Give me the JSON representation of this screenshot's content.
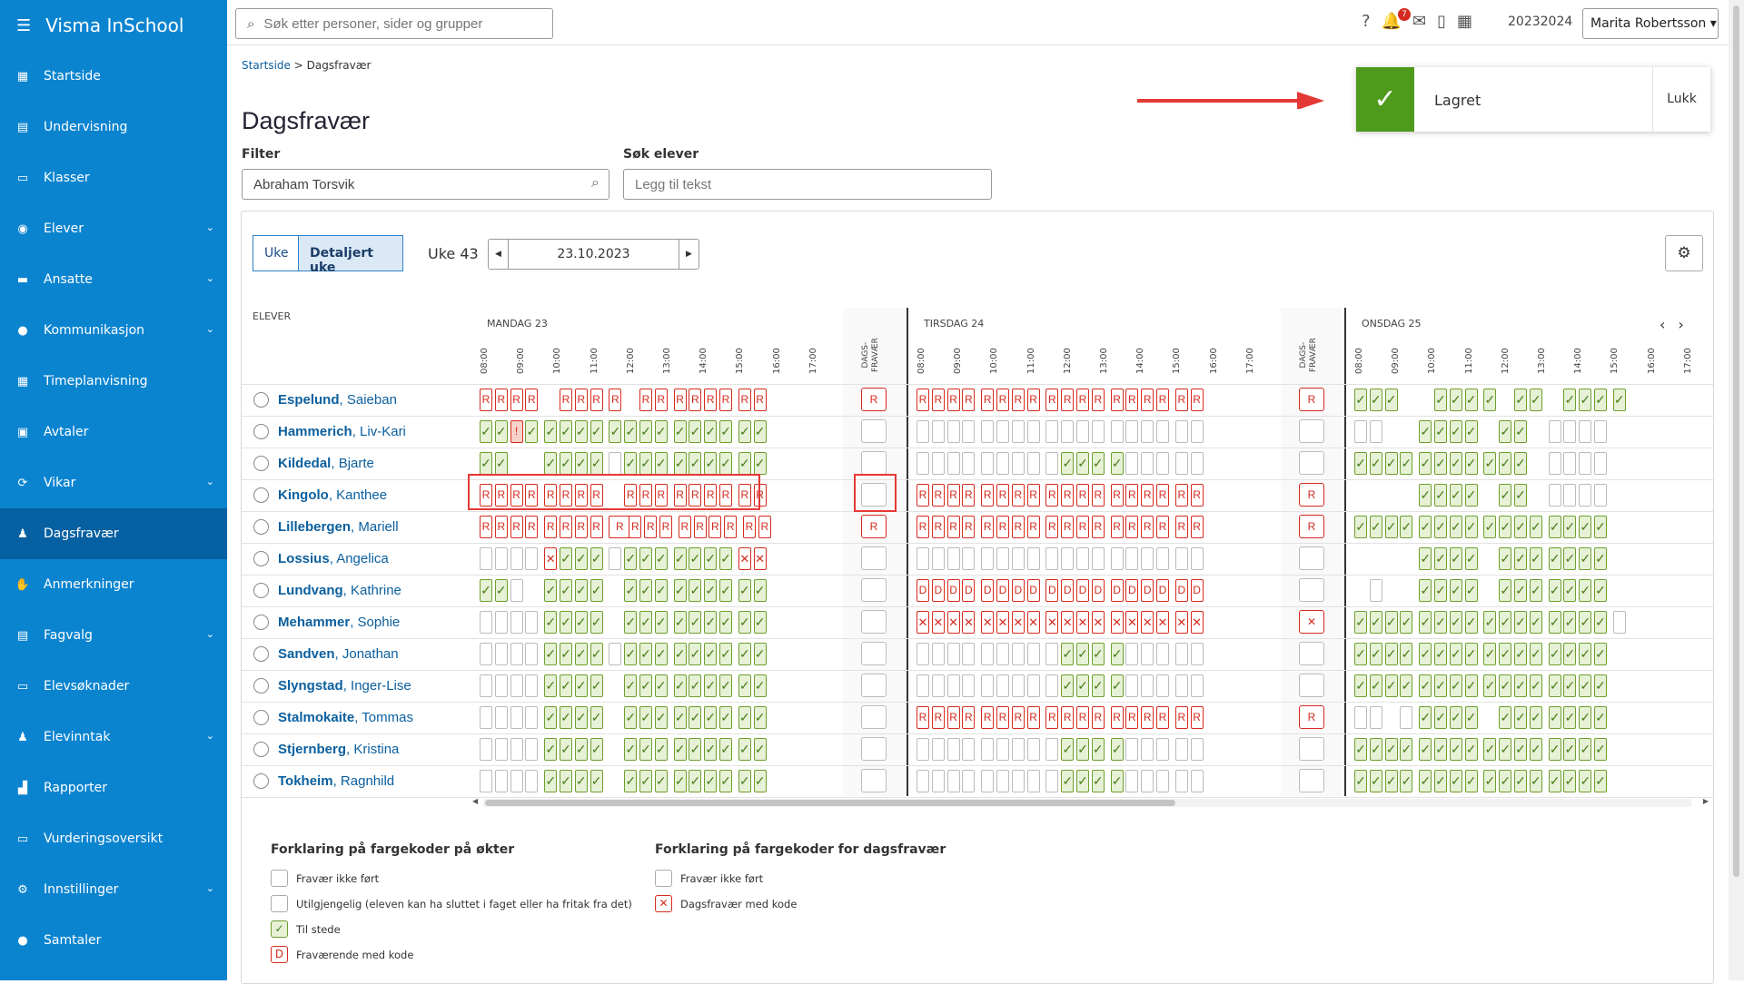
{
  "app": {
    "name": "Visma InSchool"
  },
  "sidebar": {
    "items": [
      {
        "label": "Startside",
        "icon": "grid-icon",
        "chev": false
      },
      {
        "label": "Undervisning",
        "icon": "book-icon",
        "chev": false
      },
      {
        "label": "Klasser",
        "icon": "classroom-icon",
        "chev": false
      },
      {
        "label": "Elever",
        "icon": "student-icon",
        "chev": true
      },
      {
        "label": "Ansatte",
        "icon": "briefcase-icon",
        "chev": true
      },
      {
        "label": "Kommunikasjon",
        "icon": "chat-icon",
        "chev": true
      },
      {
        "label": "Timeplanvisning",
        "icon": "calendar-icon",
        "chev": false
      },
      {
        "label": "Avtaler",
        "icon": "calendar-check-icon",
        "chev": false
      },
      {
        "label": "Vikar",
        "icon": "swap-icon",
        "chev": true
      },
      {
        "label": "Dagsfravær",
        "icon": "user-absence-icon",
        "chev": false,
        "active": true
      },
      {
        "label": "Anmerkninger",
        "icon": "hand-icon",
        "chev": false
      },
      {
        "label": "Fagvalg",
        "icon": "list-icon",
        "chev": true
      },
      {
        "label": "Elevsøknader",
        "icon": "inbox-icon",
        "chev": false
      },
      {
        "label": "Elevinntak",
        "icon": "user-add-icon",
        "chev": true
      },
      {
        "label": "Rapporter",
        "icon": "chart-icon",
        "chev": false
      },
      {
        "label": "Vurderingsoversikt",
        "icon": "board-icon",
        "chev": false
      },
      {
        "label": "Innstillinger",
        "icon": "gear-icon",
        "chev": true
      },
      {
        "label": "Samtaler",
        "icon": "chat-bubbles-icon",
        "chev": false
      }
    ]
  },
  "topbar": {
    "search_placeholder": "Søk etter personer, sider og grupper",
    "notifications_count": "7",
    "year": "20232024",
    "user": "Marita Robertsson"
  },
  "breadcrumb": {
    "home": "Startside",
    "sep": ">",
    "current": "Dagsfravær"
  },
  "page_title": "Dagsfravær",
  "filter": {
    "label": "Filter",
    "value": "Abraham Torsvik"
  },
  "search_students": {
    "label": "Søk elever",
    "placeholder": "Legg til tekst"
  },
  "toast": {
    "text": "Lagret",
    "close": "Lukk"
  },
  "view": {
    "week_label": "Uke",
    "detailed_label": "Detaljert uke",
    "week_no": "Uke 43",
    "date": "23.10.2023"
  },
  "grid": {
    "students_header": "ELEVER",
    "dags_header_line1": "DAGS-",
    "dags_header_line2": "FRAVÆR",
    "days": [
      "MANDAG 23",
      "TIRSDAG 24",
      "ONSDAG 25"
    ],
    "hours": [
      "08:00",
      "09:00",
      "10:00",
      "11:00",
      "12:00",
      "13:00",
      "14:00",
      "15:00",
      "16:00",
      "17:00"
    ],
    "students": [
      {
        "last": "Espelund",
        "first": "Saieban",
        "mon": "RRRR.RRRR.RRRRRRRR",
        "mon_d": "R",
        "tue": "RRRRRRRRRRRRRRRRRR",
        "tue_d": "R",
        "wed": "VVV..VVVV.VV.VVVV."
      },
      {
        "last": "Hammerich",
        "first": "Liv-Kari",
        "mon": "VVEVVVVVBVVVVVVVVV",
        "mon_d": "",
        "tue": "NNNNNNNNNNNNNNNNNN",
        "tue_d": "",
        "wed": "NN..VVVV.VV.NNNN."
      },
      {
        "last": "Kildedal",
        "first": "Bjarte",
        "mon": "VV..VVVVNVVVVVVVVV",
        "mon_d": "",
        "tue": "NNNNNNNNNVVVVNNNNN",
        "tue_d": "",
        "wed": "VVVVVVVVVVV.NNNN."
      },
      {
        "last": "Kingolo",
        "first": "Kanthee",
        "mon": "RRRRRRRR.RRRRRRRRR",
        "mon_d": "",
        "tue": "RRRRRRRRRRRRRRRRRR",
        "tue_d": "R",
        "wed": "....VVVV.VV.NNNN."
      },
      {
        "last": "Lillebergen",
        "first": "Mariell",
        "mon": "RRRRRRRRKRRRRRRRRR",
        "mon_d": "R",
        "tue": "RRRRRRRRRRRRRRRRRR",
        "tue_d": "R",
        "wed": "VVVVVVVVVVVVVVVV."
      },
      {
        "last": "Lossius",
        "first": "Angelica",
        "mon": "NNNNXVVVNVVVVVVVXX",
        "mon_d": "",
        "tue": "NNNNNNNNNNNNNNNNNN",
        "tue_d": "",
        "wed": "....VVVV.VVVVVVV."
      },
      {
        "last": "Lundvang",
        "first": "Kathrine",
        "mon": "VVN.VVVV.VVVVVVVVV",
        "mon_d": "",
        "tue": "DDDDDDDDDDDDDDDDDD",
        "tue_d": "",
        "wed": ".N..VVVV.VVVVVVV."
      },
      {
        "last": "Mehammer",
        "first": "Sophie",
        "mon": "NNNNVVVV.VVVVVVVVV",
        "mon_d": "",
        "tue": "XXXXXXXXXXXXXXXXXX",
        "tue_d": "X",
        "wed": "VVVVVVVVVVVVVVVVN"
      },
      {
        "last": "Sandven",
        "first": "Jonathan",
        "mon": "NNNNVVVVNVVVVVVVVV",
        "mon_d": "",
        "tue": "NNNNNNNNNVVVVNNNNN",
        "tue_d": "",
        "wed": "VVVVVVVVVVVVVVVV."
      },
      {
        "last": "Slyngstad",
        "first": "Inger-Lise",
        "mon": "NNNNVVVV.VVVVVVVVV",
        "mon_d": "",
        "tue": "NNNNNNNNNVVVVNNNNN",
        "tue_d": "",
        "wed": "VVVVVVVVVVVVVVVV."
      },
      {
        "last": "Stalmokaite",
        "first": "Tommas",
        "mon": "NNNNVVVV.VVVVVVVVV",
        "mon_d": "",
        "tue": "RRRRRRRRRRRRRRRRRR",
        "tue_d": "R",
        "wed": "NN.NVVVV.VVVVVVV."
      },
      {
        "last": "Stjernberg",
        "first": "Kristina",
        "mon": "NNNNVVVV.VVVVVVVVV",
        "mon_d": "",
        "tue": "NNNNNNNNNVVVVNNNNN",
        "tue_d": "",
        "wed": "VVVVVVVVVVVVVVVV."
      },
      {
        "last": "Tokheim",
        "first": "Ragnhild",
        "mon": "NNNNVVVV.VVVVVVVVV",
        "mon_d": "",
        "tue": "NNNNNNNNNVVVVNNNNN",
        "tue_d": "",
        "wed": "VVVVVVVVVVVVVVVV."
      }
    ]
  },
  "legend": {
    "sessions_title": "Forklaring på fargekoder på økter",
    "sessions": [
      {
        "code": "",
        "type": "N",
        "text": "Fravær ikke ført"
      },
      {
        "code": "",
        "type": "N",
        "text": "Utilgjengelig (eleven kan ha sluttet i faget eller ha fritak fra det)"
      },
      {
        "code": "✓",
        "type": "V",
        "text": "Til stede"
      },
      {
        "code": "D",
        "type": "D",
        "text": "Fraværende med kode"
      }
    ],
    "day_title": "Forklaring på fargekoder for dagsfravær",
    "day": [
      {
        "code": "",
        "type": "N",
        "text": "Fravær ikke ført"
      },
      {
        "code": "✕",
        "type": "X",
        "text": "Dagsfravær med kode"
      }
    ]
  },
  "colors": {
    "sidebar": "#0b84d0",
    "sidebar_active": "#0760a1",
    "present": "#e6f1d6",
    "absent": "#d52b1e",
    "saved": "#4e9a1c"
  }
}
